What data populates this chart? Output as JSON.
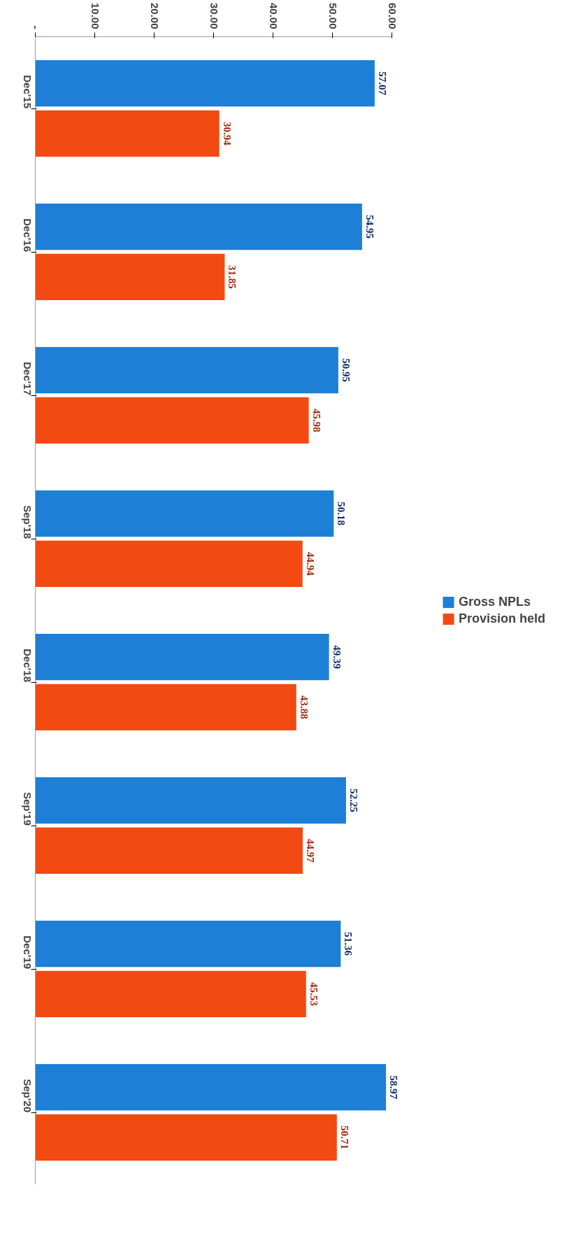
{
  "chart_data": {
    "type": "bar",
    "orientation": "horizontal",
    "categories": [
      "Dec'15",
      "Dec'16",
      "Dec'17",
      "Sep'18",
      "Dec'18",
      "Sep'19",
      "Dec'19",
      "Sep'20"
    ],
    "series": [
      {
        "name": "Gross NPLs",
        "color": "#1e7fd6",
        "values": [
          57.07,
          54.95,
          50.95,
          50.18,
          49.39,
          52.25,
          51.36,
          58.97
        ]
      },
      {
        "name": "Provision held",
        "color": "#f24a12",
        "values": [
          30.94,
          31.85,
          45.98,
          44.94,
          43.88,
          44.97,
          45.53,
          50.71
        ]
      }
    ],
    "xlim": [
      0,
      60
    ],
    "xticks": [
      {
        "value": 0,
        "label": "-"
      },
      {
        "value": 10,
        "label": "10.00"
      },
      {
        "value": 20,
        "label": "20.00"
      },
      {
        "value": 30,
        "label": "30.00"
      },
      {
        "value": 40,
        "label": "40.00"
      },
      {
        "value": 50,
        "label": "50.00"
      },
      {
        "value": 60,
        "label": "60.00"
      }
    ],
    "data_labels": true,
    "grid": false,
    "legend": "right"
  }
}
